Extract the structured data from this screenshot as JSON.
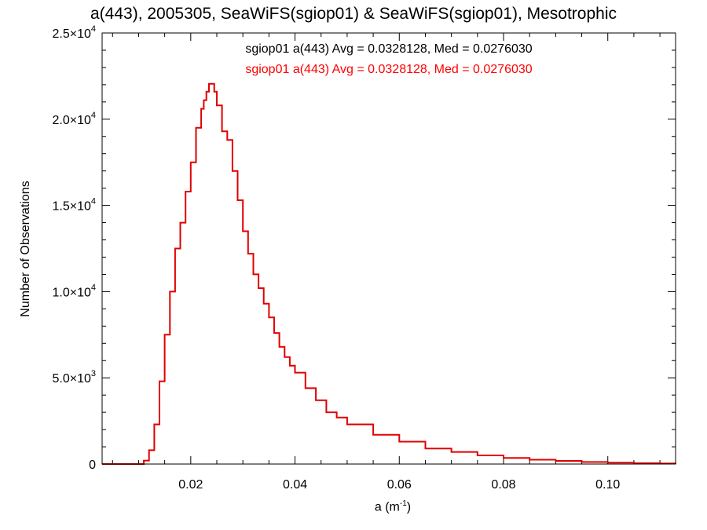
{
  "chart_data": {
    "type": "histogram",
    "title": "a(443), 2005305, SeaWiFS(sgiop01) & SeaWiFS(sgiop01), Mesotrophic",
    "xlabel": "a (m",
    "xlabel_exp": "-1",
    "xlabel_suffix": ")",
    "ylabel": "Number of Observations",
    "xlim": [
      0.003,
      0.113
    ],
    "ylim": [
      0,
      25000
    ],
    "x_ticks": [
      0.02,
      0.04,
      0.06,
      0.08,
      0.1
    ],
    "x_tick_labels": [
      "0.02",
      "0.04",
      "0.06",
      "0.08",
      "0.10"
    ],
    "y_ticks": [
      0,
      5000,
      10000,
      15000,
      20000,
      25000
    ],
    "y_tick_labels": [
      {
        "mant": "0",
        "exp": ""
      },
      {
        "mant": "5.0×10",
        "exp": "3"
      },
      {
        "mant": "1.0×10",
        "exp": "4"
      },
      {
        "mant": "1.5×10",
        "exp": "4"
      },
      {
        "mant": "2.0×10",
        "exp": "4"
      },
      {
        "mant": "2.5×10",
        "exp": "4"
      }
    ],
    "annotations": [
      {
        "text": "sgiop01 a(443) Avg = 0.0328128, Med = 0.0276030",
        "color": "#000000"
      },
      {
        "text": "sgiop01 a(443) Avg = 0.0328128, Med = 0.0276030",
        "color": "#ff0000"
      }
    ],
    "series": [
      {
        "color": "#e00000",
        "style": "step",
        "x": [
          0.003,
          0.01,
          0.011,
          0.012,
          0.013,
          0.014,
          0.015,
          0.016,
          0.017,
          0.018,
          0.019,
          0.02,
          0.021,
          0.022,
          0.0225,
          0.023,
          0.0235,
          0.024,
          0.0245,
          0.025,
          0.026,
          0.027,
          0.028,
          0.029,
          0.03,
          0.031,
          0.032,
          0.033,
          0.034,
          0.035,
          0.036,
          0.037,
          0.038,
          0.039,
          0.04,
          0.042,
          0.044,
          0.046,
          0.048,
          0.05,
          0.055,
          0.06,
          0.065,
          0.07,
          0.075,
          0.08,
          0.085,
          0.09,
          0.095,
          0.1,
          0.105,
          0.11,
          0.113
        ],
        "y": [
          0,
          0,
          200,
          800,
          2300,
          4800,
          7500,
          10000,
          12500,
          14000,
          15800,
          17500,
          19500,
          20600,
          21100,
          21600,
          22050,
          22050,
          21600,
          20800,
          19300,
          18800,
          17000,
          15300,
          13500,
          12200,
          11000,
          10200,
          9300,
          8500,
          7600,
          6800,
          6200,
          5700,
          5300,
          4400,
          3700,
          3000,
          2700,
          2300,
          1700,
          1300,
          900,
          700,
          500,
          350,
          250,
          180,
          120,
          80,
          50,
          30,
          20
        ]
      }
    ]
  }
}
